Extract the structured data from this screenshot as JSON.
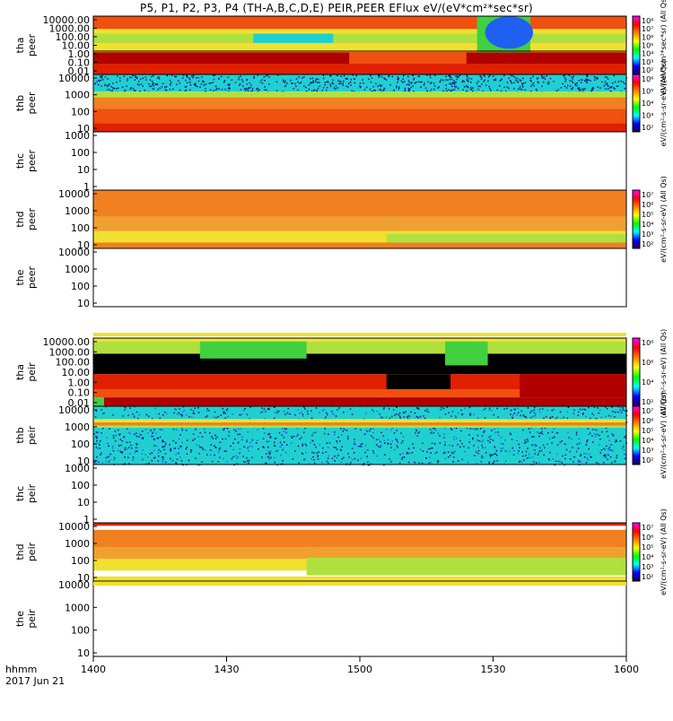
{
  "title": "P5, P1, P2, P3, P4 (TH-A,B,C,D,E) PEIR,PEER EFlux eV/(eV*cm²*sec*sr)",
  "x_axis": {
    "row1_label": "hhmm",
    "row2_label": "2017 Jun 21",
    "tick_labels": [
      "1400",
      "1430",
      "1500",
      "1530",
      "1600"
    ]
  },
  "colorbar_labels": {
    "peer_a": "eV/(eV*cm²*sec*sr) (All Qs)",
    "peer_b": "eV/(cm²-s-sr-eV) (All Qs)",
    "peer_d": "eV/(cm²-s-sr-eV) (All Qs)",
    "peir_a": "eV/(cm²-s-sr-eV) (All Qs)",
    "peir_b": "eV/(cm²-s-sr-eV) (All Qs)",
    "peir_d": "eV/(cm²-s-sr-eV) (All Qs)"
  },
  "chart_data": {
    "type": "heatmap",
    "x": {
      "start": "14:00",
      "end": "16:00",
      "units": "hhmm",
      "date": "2017 Jun 21"
    },
    "z_scale": "log",
    "panels": [
      {
        "id": "tha_peer",
        "probe": "tha",
        "product": "peer",
        "ylabel": "tha\npeer",
        "yticks": [
          "10000.00",
          "1000.00",
          "100.00",
          "10.00",
          "1.00",
          "0.10",
          "0.01"
        ],
        "colorbar": true,
        "cbticks": [
          "10⁸",
          "10⁷",
          "10⁶",
          "10⁵",
          "10⁴",
          "10³",
          "10²"
        ],
        "cbar_label_key": "peer_a",
        "pattern": "tha_peer"
      },
      {
        "id": "thb_peer",
        "probe": "thb",
        "product": "peer",
        "ylabel": "thb\npeer",
        "yticks": [
          "10000",
          "1000",
          "100",
          "10"
        ],
        "colorbar": true,
        "cbticks": [
          "10⁶",
          "10⁵",
          "10⁴",
          "10³",
          "10²"
        ],
        "cbar_label_key": "peer_b",
        "pattern": "thb_peer"
      },
      {
        "id": "thc_peer",
        "probe": "thc",
        "product": "peer",
        "ylabel": "thc\npeer",
        "yticks": [
          "1000",
          "100",
          "10",
          "1"
        ],
        "colorbar": false,
        "pattern": "empty"
      },
      {
        "id": "thd_peer",
        "probe": "thd",
        "product": "peer",
        "ylabel": "thd\npeer",
        "yticks": [
          "10000",
          "1000",
          "100",
          "10"
        ],
        "colorbar": true,
        "cbticks": [
          "10⁷",
          "10⁶",
          "10⁵",
          "10⁴",
          "10³",
          "10²"
        ],
        "cbar_label_key": "peer_d",
        "pattern": "thd_peer"
      },
      {
        "id": "the_peer",
        "probe": "the",
        "product": "peer",
        "ylabel": "the\npeer",
        "yticks": [
          "10000",
          "1000",
          "100",
          "10"
        ],
        "colorbar": false,
        "pattern": "empty"
      },
      {
        "id": "tha_peir",
        "probe": "tha",
        "product": "peir",
        "ylabel": "tha\npeir",
        "yticks": [
          "10000.00",
          "1000.00",
          "100.00",
          "10.00",
          "1.00",
          "0.10",
          "0.01"
        ],
        "colorbar": true,
        "cbticks": [
          "10⁸",
          "10⁶",
          "10⁴",
          "10²"
        ],
        "cbar_label_key": "peir_a",
        "pattern": "tha_peir"
      },
      {
        "id": "thb_peir",
        "probe": "thb",
        "product": "peir",
        "ylabel": "thb\npeir",
        "yticks": [
          "10000",
          "1000",
          "100",
          "10"
        ],
        "colorbar": true,
        "cbticks": [
          "10⁷",
          "10⁶",
          "10⁵",
          "10⁴",
          "10³",
          "10²"
        ],
        "cbar_label_key": "peir_b",
        "pattern": "thb_peir"
      },
      {
        "id": "thc_peir",
        "probe": "thc",
        "product": "peir",
        "ylabel": "thc\npeir",
        "yticks": [
          "1000",
          "100",
          "10",
          "1"
        ],
        "colorbar": false,
        "pattern": "empty"
      },
      {
        "id": "thd_peir",
        "probe": "thd",
        "product": "peir",
        "ylabel": "thd\npeir",
        "yticks": [
          "10000",
          "1000",
          "100",
          "10"
        ],
        "colorbar": true,
        "cbticks": [
          "10⁷",
          "10⁶",
          "10⁵",
          "10⁴",
          "10³",
          "10²"
        ],
        "cbar_label_key": "peir_d",
        "pattern": "thd_peir"
      },
      {
        "id": "the_peir",
        "probe": "the",
        "product": "peir",
        "ylabel": "the\npeir",
        "yticks": [
          "10000",
          "1000",
          "100",
          "10"
        ],
        "colorbar": false,
        "pattern": "empty"
      }
    ]
  },
  "colors": {
    "dark_red": "#b00000",
    "red": "#e02000",
    "orange_red": "#f05010",
    "orange": "#f08020",
    "light_orange": "#f0a030",
    "yellow": "#f0e030",
    "yellow_green": "#b0e040",
    "green": "#40d040",
    "cyan": "#20d0d0",
    "blue": "#2060f0",
    "navy": "#101080",
    "black": "#000000"
  }
}
